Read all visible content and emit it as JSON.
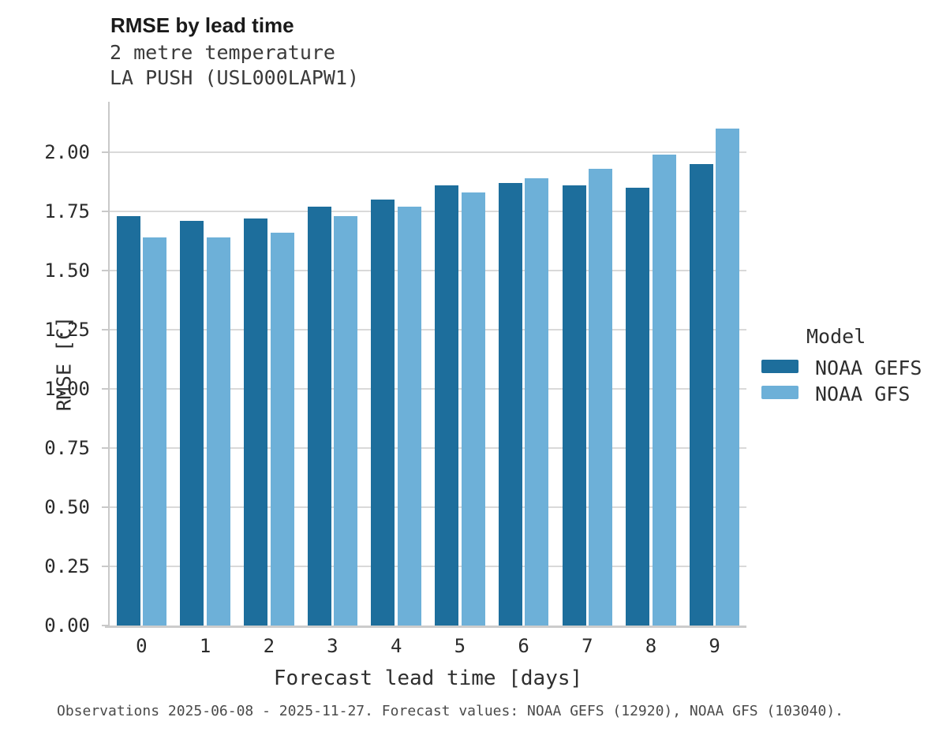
{
  "title": "RMSE by lead time",
  "subtitle_line1": "2 metre temperature",
  "subtitle_line2": "LA PUSH (USL000LAPW1)",
  "footer": "Observations 2025-06-08 - 2025-11-27. Forecast values: NOAA GEFS (12920), NOAA GFS (103040).",
  "legend": {
    "title": "Model",
    "entries": [
      {
        "label": "NOAA GEFS",
        "color": "#1d6e9c"
      },
      {
        "label": "NOAA GFS",
        "color": "#6db0d8"
      }
    ]
  },
  "colors": {
    "gefs_bar": "#1d6e9c",
    "gfs_bar": "#6db0d8",
    "gridline": "#d9d9d9",
    "spine": "#c9c9c9",
    "title_text": "#1a1a1a",
    "body_text": "#2e2e2e",
    "footer_text": "#4a4a4a"
  },
  "chart_data": {
    "type": "bar",
    "title": "RMSE by lead time",
    "subtitle": [
      "2 metre temperature",
      "LA PUSH (USL000LAPW1)"
    ],
    "xlabel": "Forecast lead time [days]",
    "ylabel": "RMSE [C]",
    "categories": [
      0,
      1,
      2,
      3,
      4,
      5,
      6,
      7,
      8,
      9
    ],
    "xtick_labels": [
      "0",
      "1",
      "2",
      "3",
      "4",
      "5",
      "6",
      "7",
      "8",
      "9"
    ],
    "series": [
      {
        "name": "NOAA GEFS",
        "color": "#1d6e9c",
        "values": [
          1.73,
          1.71,
          1.72,
          1.77,
          1.8,
          1.86,
          1.87,
          1.86,
          1.85,
          1.95
        ]
      },
      {
        "name": "NOAA GFS",
        "color": "#6db0d8",
        "values": [
          1.64,
          1.64,
          1.66,
          1.73,
          1.77,
          1.83,
          1.89,
          1.93,
          1.99,
          2.1
        ]
      }
    ],
    "ylim": [
      0,
      2.2133
    ],
    "yticks": [
      0.0,
      0.25,
      0.5,
      0.75,
      1.0,
      1.25,
      1.5,
      1.75,
      2.0
    ],
    "ytick_labels": [
      "0.00",
      "0.25",
      "0.50",
      "0.75",
      "1.00",
      "1.25",
      "1.50",
      "1.75",
      "2.00"
    ],
    "grid": "horizontal",
    "legend_title": "Model",
    "legend_position": "right",
    "caption": "Observations 2025-06-08 - 2025-11-27. Forecast values: NOAA GEFS (12920), NOAA GFS (103040)."
  }
}
